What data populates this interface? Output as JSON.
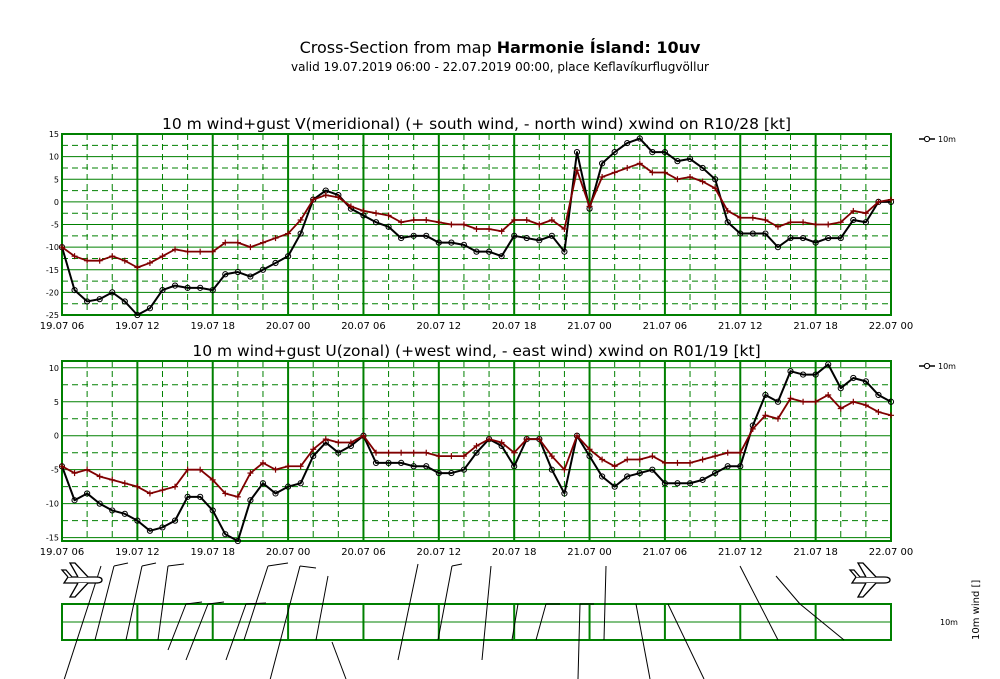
{
  "header": {
    "title_prefix": "Cross-Section from map ",
    "title_bold": "Harmonie Ísland: 10uv",
    "subtitle": "valid 19.07.2019 06:00 - 22.07.2019 00:00, place Keflavíkurflugvöllur"
  },
  "colors": {
    "grid": "#008000",
    "mean": "#000000",
    "gust": "#800000"
  },
  "chart_data": [
    {
      "type": "line",
      "title": "10 m wind+gust V(meridional) (+ south wind, - north wind) xwind on R10/28 [kt]",
      "xlabel": "",
      "ylabel": "",
      "x_ticks": [
        "19.07 06",
        "19.07 12",
        "19.07 18",
        "20.07 00",
        "20.07 06",
        "20.07 12",
        "20.07 18",
        "21.07 00",
        "21.07 06",
        "21.07 12",
        "21.07 18",
        "22.07 00"
      ],
      "xlim_hours": [
        0,
        66
      ],
      "ylim": [
        -25,
        15
      ],
      "y_ticks": [
        15,
        10,
        5,
        0,
        -5,
        -10,
        -15,
        -20,
        -25
      ],
      "legend": {
        "label": "10m",
        "position": "top-right"
      },
      "series": [
        {
          "role": "mean",
          "marker": "circle",
          "values": [
            -10,
            -19.5,
            -22,
            -21.5,
            -20,
            -22,
            -25,
            -23.5,
            -19.5,
            -18.5,
            -19,
            -19,
            -19.5,
            -16,
            -15.5,
            -16.5,
            -15,
            -13.5,
            -12,
            -7,
            0.5,
            2.5,
            1.5,
            -1.5,
            -3,
            -4.5,
            -5.5,
            -8,
            -7.5,
            -7.5,
            -9,
            -9,
            -9.5,
            -11,
            -11,
            -12,
            -7.5,
            -8,
            -8.5,
            -7.5,
            -11,
            11,
            -1.5,
            8.5,
            11,
            13,
            14,
            11,
            11,
            9,
            9.5,
            7.5,
            5,
            -4.5,
            -7,
            -7,
            -7,
            -10,
            -8,
            -8,
            -9,
            -8,
            -8,
            -4,
            -4.5,
            0,
            0
          ]
        },
        {
          "role": "gust",
          "marker": "plus",
          "values": [
            -10,
            -12,
            -13,
            -13,
            -12,
            -13,
            -14.5,
            -13.5,
            -12,
            -10.5,
            -11,
            -11,
            -11,
            -9,
            -9,
            -10,
            -9,
            -8,
            -7,
            -4,
            0.5,
            1.5,
            1,
            -1,
            -2,
            -2.5,
            -3,
            -4.5,
            -4,
            -4,
            -4.5,
            -5,
            -5,
            -6,
            -6,
            -6.5,
            -4,
            -4,
            -5,
            -4,
            -6,
            7,
            -1,
            5.5,
            6.5,
            7.5,
            8.5,
            6.5,
            6.5,
            5,
            5.5,
            4.5,
            3,
            -2,
            -3.5,
            -3.5,
            -4,
            -5.5,
            -4.5,
            -4.5,
            -5,
            -5,
            -4.5,
            -2,
            -2.5,
            0,
            0.5
          ]
        }
      ]
    },
    {
      "type": "line",
      "title": "10 m wind+gust U(zonal) (+west wind, - east wind) xwind on R01/19 [kt]",
      "xlabel": "",
      "ylabel": "",
      "x_ticks": [
        "19.07 06",
        "19.07 12",
        "19.07 18",
        "20.07 00",
        "20.07 06",
        "20.07 12",
        "20.07 18",
        "21.07 00",
        "21.07 06",
        "21.07 12",
        "21.07 18",
        "22.07 00"
      ],
      "xlim_hours": [
        0,
        66
      ],
      "ylim": [
        -15.5,
        11
      ],
      "y_ticks": [
        10,
        5,
        0,
        -5,
        -10,
        -15
      ],
      "legend": {
        "label": "10m",
        "position": "top-right"
      },
      "series": [
        {
          "role": "mean",
          "marker": "circle",
          "values": [
            -4.5,
            -9.5,
            -8.5,
            -10,
            -11,
            -11.5,
            -12.5,
            -14,
            -13.5,
            -12.5,
            -9,
            -9,
            -11,
            -14.5,
            -15.5,
            -9.5,
            -7,
            -8.5,
            -7.5,
            -7,
            -3,
            -1,
            -2.5,
            -1.5,
            0,
            -4,
            -4,
            -4,
            -4.5,
            -4.5,
            -5.5,
            -5.5,
            -5,
            -2.5,
            -0.5,
            -1.5,
            -4.5,
            -0.5,
            -0.5,
            -5,
            -8.5,
            0,
            -3,
            -6,
            -7.5,
            -6,
            -5.5,
            -5,
            -7,
            -7,
            -7,
            -6.5,
            -5.5,
            -4.5,
            -4.5,
            1.5,
            6,
            5,
            9.5,
            9,
            9,
            10.5,
            7,
            8.5,
            8,
            6,
            5
          ]
        },
        {
          "role": "gust",
          "marker": "plus",
          "values": [
            -4.5,
            -5.5,
            -5,
            -6,
            -6.5,
            -7,
            -7.5,
            -8.5,
            -8,
            -7.5,
            -5,
            -5,
            -6.5,
            -8.5,
            -9,
            -5.5,
            -4,
            -5,
            -4.5,
            -4.5,
            -2,
            -0.5,
            -1,
            -1,
            0,
            -2.5,
            -2.5,
            -2.5,
            -2.5,
            -2.5,
            -3,
            -3,
            -3,
            -1.5,
            -0.5,
            -1,
            -2.5,
            -0.5,
            -0.5,
            -3,
            -5,
            0,
            -2,
            -3.5,
            -4.5,
            -3.5,
            -3.5,
            -3,
            -4,
            -4,
            -4,
            -3.5,
            -3,
            -2.5,
            -2.5,
            1,
            3,
            2.5,
            5.5,
            5,
            5,
            6,
            4,
            5,
            4.5,
            3.5,
            3
          ]
        }
      ]
    }
  ],
  "wind_panel": {
    "right_label": "10m",
    "right_label_vertical": "10m wind []"
  }
}
